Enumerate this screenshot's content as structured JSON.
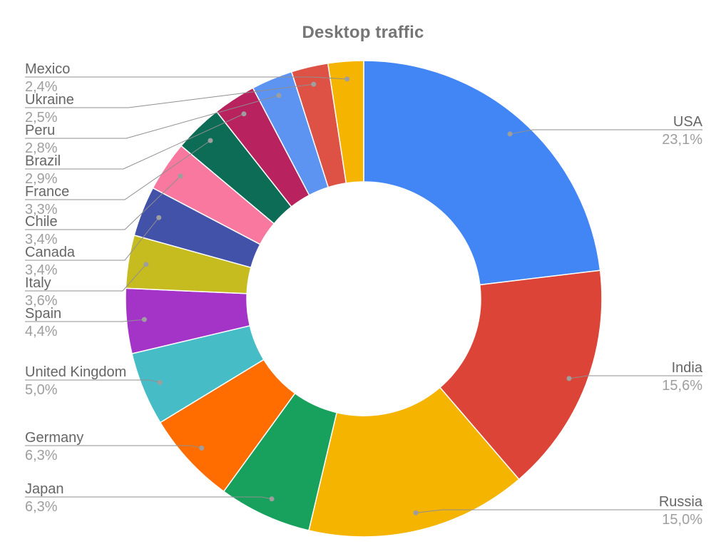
{
  "title": "Desktop traffic",
  "chart_data": {
    "type": "pie",
    "title": "Desktop traffic",
    "donut_hole_ratio": 0.5,
    "unit": "%",
    "start_angle_deg": 0,
    "direction": "clockwise",
    "legend_position": "outside-labels",
    "slices": [
      {
        "label": "USA",
        "value": 23.1,
        "display": "23,1%",
        "color": "#4285f4"
      },
      {
        "label": "India",
        "value": 15.6,
        "display": "15,6%",
        "color": "#db4437"
      },
      {
        "label": "Russia",
        "value": 15.0,
        "display": "15,0%",
        "color": "#f4b400"
      },
      {
        "label": "Japan",
        "value": 6.3,
        "display": "6,3%",
        "color": "#17a15d"
      },
      {
        "label": "Germany",
        "value": 6.3,
        "display": "6,3%",
        "color": "#ff6d00"
      },
      {
        "label": "United Kingdom",
        "value": 5.0,
        "display": "5,0%",
        "color": "#46bdc6"
      },
      {
        "label": "Spain",
        "value": 4.4,
        "display": "4,4%",
        "color": "#a434c8"
      },
      {
        "label": "Italy",
        "value": 3.6,
        "display": "3,6%",
        "color": "#c6bc20"
      },
      {
        "label": "Canada",
        "value": 3.4,
        "display": "3,4%",
        "color": "#4252a8"
      },
      {
        "label": "Chile",
        "value": 3.4,
        "display": "3,4%",
        "color": "#f8789f"
      },
      {
        "label": "France",
        "value": 3.3,
        "display": "3,3%",
        "color": "#0c6c56"
      },
      {
        "label": "Brazil",
        "value": 2.9,
        "display": "2,9%",
        "color": "#b8235f"
      },
      {
        "label": "Peru",
        "value": 2.8,
        "display": "2,8%",
        "color": "#5d94f2"
      },
      {
        "label": "Ukraine",
        "value": 2.5,
        "display": "2,5%",
        "color": "#de5246"
      },
      {
        "label": "Mexico",
        "value": 2.4,
        "display": "2,4%",
        "color": "#f4b400"
      }
    ]
  },
  "colors": {
    "background": "#ffffff",
    "title_text": "#757575",
    "label_text": "#666666",
    "value_text": "#9e9e9e",
    "leader_line": "#8f8f8f"
  }
}
